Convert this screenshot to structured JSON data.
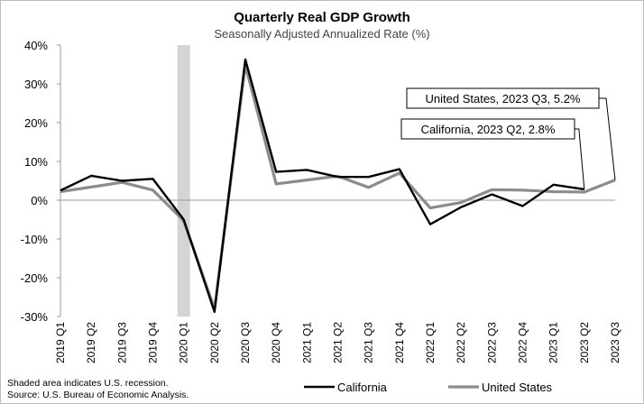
{
  "chart_data": {
    "type": "line",
    "title": "Quarterly Real GDP Growth",
    "subtitle": "Seasonally Adjusted Annualized Rate (%)",
    "categories": [
      "2019 Q1",
      "2019 Q2",
      "2019 Q3",
      "2019 Q4",
      "2020 Q1",
      "2020 Q2",
      "2020 Q3",
      "2020 Q4",
      "2021 Q1",
      "2021 Q2",
      "2021 Q3",
      "2021 Q4",
      "2022 Q1",
      "2022 Q2",
      "2022 Q3",
      "2022 Q4",
      "2023 Q1",
      "2023 Q2",
      "2023 Q3"
    ],
    "series": [
      {
        "name": "California",
        "color": "#000000",
        "values": [
          2.5,
          6.3,
          5.0,
          5.5,
          -5.0,
          -28.8,
          36.3,
          7.3,
          7.8,
          6.0,
          6.0,
          8.0,
          -6.2,
          -1.8,
          1.5,
          -1.5,
          4.0,
          2.8,
          null
        ]
      },
      {
        "name": "United States",
        "color": "#8c8c8c",
        "values": [
          2.2,
          3.4,
          4.6,
          2.6,
          -5.3,
          -28.0,
          34.8,
          4.2,
          5.2,
          6.2,
          3.3,
          7.0,
          -2.0,
          -0.6,
          2.7,
          2.6,
          2.2,
          2.1,
          5.2
        ]
      }
    ],
    "y_axis": {
      "min": -30,
      "max": 40,
      "step": 10,
      "tick_labels": [
        "-30%",
        "-20%",
        "-10%",
        "0%",
        "10%",
        "20%",
        "30%",
        "40%"
      ]
    },
    "recession_shading": {
      "category": "2020 Q1"
    },
    "callouts": [
      {
        "text": "United States, 2023 Q3, 5.2%",
        "series": "United States",
        "category": "2023 Q3"
      },
      {
        "text": "California, 2023 Q2, 2.8%",
        "series": "California",
        "category": "2023 Q2"
      }
    ],
    "legend": {
      "placement": "bottom-right",
      "entries": [
        "California",
        "United States"
      ]
    },
    "notes": [
      "Shaded area indicates U.S. recession.",
      "Source: U.S. Bureau of Economic Analysis."
    ],
    "grid": false
  }
}
